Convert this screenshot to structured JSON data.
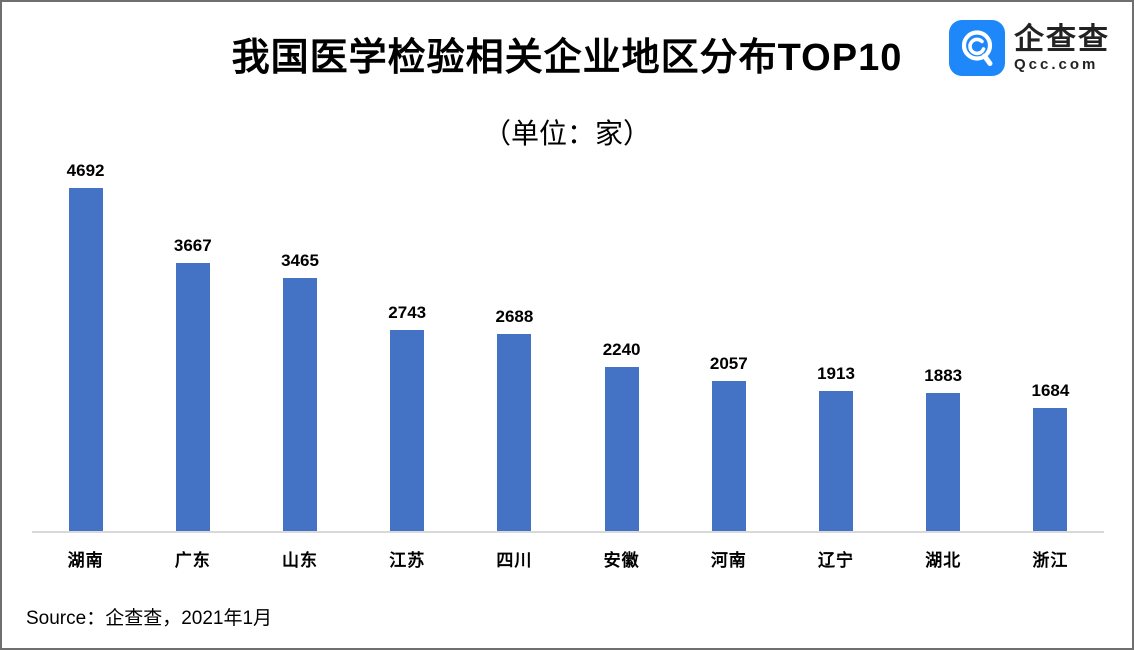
{
  "header": {
    "title": "我国医学检验相关企业地区分布TOP10"
  },
  "subtitle": "（单位：家）",
  "logo": {
    "name_cn": "企查查",
    "domain": "Qcc.com",
    "icon": "qcc-magnifier-icon",
    "brand_color": "#1e88fa",
    "text_color": "#222222"
  },
  "chart_data": {
    "type": "bar",
    "title": "我国医学检验相关企业地区分布TOP10",
    "subtitle": "（单位：家）",
    "unit": "家",
    "categories": [
      "湖南",
      "广东",
      "山东",
      "江苏",
      "四川",
      "安徽",
      "河南",
      "辽宁",
      "湖北",
      "浙江"
    ],
    "values": [
      4692,
      3667,
      3465,
      2743,
      2688,
      2240,
      2057,
      1913,
      1883,
      1684
    ],
    "bar_color": "#4472c4",
    "axis_color": "#d9d9d9",
    "ylim": [
      0,
      4800
    ],
    "grid": false,
    "legend": false,
    "data_labels": true
  },
  "footer": {
    "source": "Source：企查查，2021年1月"
  }
}
